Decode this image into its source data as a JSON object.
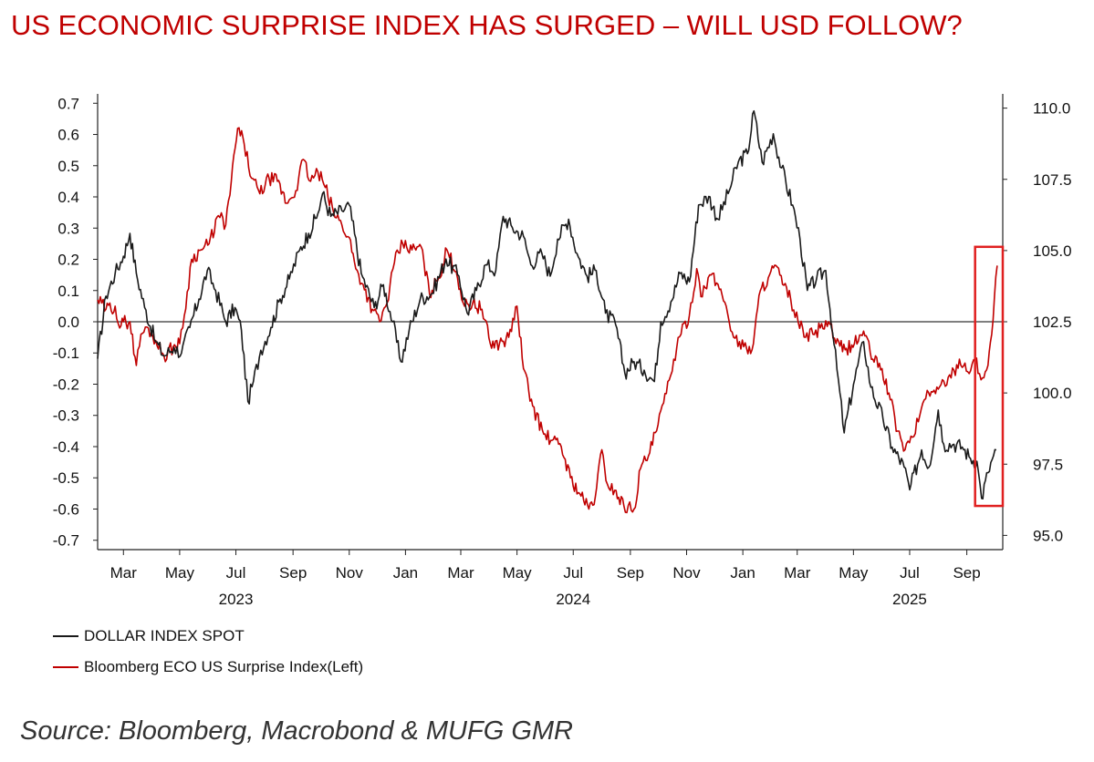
{
  "title": "US ECONOMIC SURPRISE INDEX HAS SURGED – WILL USD FOLLOW?",
  "source": "Source: Bloomberg, Macrobond & MUFG GMR",
  "colors": {
    "title": "#c00000",
    "dxy": "#1a1a1a",
    "eco": "#c00000",
    "highlight_box": "#e02020",
    "zero_line": "#333333"
  },
  "legend": [
    {
      "label": "DOLLAR INDEX SPOT",
      "color": "#1a1a1a"
    },
    {
      "label": "Bloomberg ECO US Surprise Index(Left)",
      "color": "#c00000"
    }
  ],
  "chart_data": {
    "type": "line",
    "title": "US ECONOMIC SURPRISE INDEX HAS SURGED – WILL USD FOLLOW?",
    "x_range": [
      "2023-02-01",
      "2025-10-10"
    ],
    "x_ticks": [
      {
        "date": "2023-03-01",
        "label": "Mar"
      },
      {
        "date": "2023-05-01",
        "label": "May"
      },
      {
        "date": "2023-07-01",
        "label": "Jul"
      },
      {
        "date": "2023-09-01",
        "label": "Sep"
      },
      {
        "date": "2023-11-01",
        "label": "Nov"
      },
      {
        "date": "2024-01-01",
        "label": "Jan"
      },
      {
        "date": "2024-03-01",
        "label": "Mar"
      },
      {
        "date": "2024-05-01",
        "label": "May"
      },
      {
        "date": "2024-07-01",
        "label": "Jul"
      },
      {
        "date": "2024-09-01",
        "label": "Sep"
      },
      {
        "date": "2024-11-01",
        "label": "Nov"
      },
      {
        "date": "2025-01-01",
        "label": "Jan"
      },
      {
        "date": "2025-03-01",
        "label": "Mar"
      },
      {
        "date": "2025-05-01",
        "label": "May"
      },
      {
        "date": "2025-07-01",
        "label": "Jul"
      },
      {
        "date": "2025-09-01",
        "label": "Sep"
      }
    ],
    "year_labels": [
      {
        "date": "2023-07-01",
        "label": "2023"
      },
      {
        "date": "2024-07-01",
        "label": "2024"
      },
      {
        "date": "2025-07-01",
        "label": "2025"
      }
    ],
    "y_left": {
      "range": [
        -0.73,
        0.73
      ],
      "ticks": [
        0.7,
        0.6,
        0.5,
        0.4,
        0.3,
        0.2,
        0.1,
        0.0,
        -0.1,
        -0.2,
        -0.3,
        -0.4,
        -0.5,
        -0.6,
        -0.7
      ],
      "tick_labels": [
        "0.7",
        "0.6",
        "0.5",
        "0.4",
        "0.3",
        "0.2",
        "0.1",
        "0.0",
        "-0.1",
        "-0.2",
        "-0.3",
        "-0.4",
        "-0.5",
        "-0.6",
        "-0.7"
      ]
    },
    "y_right": {
      "range": [
        94.5,
        110.5
      ],
      "ticks": [
        110.0,
        107.5,
        105.0,
        102.5,
        100.0,
        97.5,
        95.0
      ],
      "tick_labels": [
        "110.0",
        "107.5",
        "105.0",
        "102.5",
        "100.0",
        "97.5",
        "95.0"
      ]
    },
    "zero_line": 0.0,
    "highlight_box": {
      "x": [
        "2025-09-10",
        "2025-10-10"
      ],
      "y_left": [
        -0.59,
        0.24
      ]
    },
    "series": [
      {
        "name": "DOLLAR INDEX SPOT",
        "axis": "right",
        "points": [
          [
            "2023-02-01",
            101.2
          ],
          [
            "2023-02-10",
            103.4
          ],
          [
            "2023-02-20",
            104.2
          ],
          [
            "2023-03-01",
            104.8
          ],
          [
            "2023-03-08",
            105.6
          ],
          [
            "2023-03-15",
            104.2
          ],
          [
            "2023-03-24",
            103.0
          ],
          [
            "2023-04-05",
            101.8
          ],
          [
            "2023-04-14",
            101.3
          ],
          [
            "2023-04-25",
            101.6
          ],
          [
            "2023-05-03",
            101.4
          ],
          [
            "2023-05-12",
            102.3
          ],
          [
            "2023-05-22",
            103.3
          ],
          [
            "2023-05-31",
            104.3
          ],
          [
            "2023-06-09",
            103.6
          ],
          [
            "2023-06-20",
            102.5
          ],
          [
            "2023-06-30",
            103.0
          ],
          [
            "2023-07-07",
            102.2
          ],
          [
            "2023-07-14",
            99.7
          ],
          [
            "2023-07-20",
            100.4
          ],
          [
            "2023-07-28",
            101.5
          ],
          [
            "2023-08-08",
            102.3
          ],
          [
            "2023-08-18",
            103.3
          ],
          [
            "2023-08-28",
            104.0
          ],
          [
            "2023-09-08",
            105.0
          ],
          [
            "2023-09-18",
            105.6
          ],
          [
            "2023-09-28",
            106.3
          ],
          [
            "2023-10-03",
            107.0
          ],
          [
            "2023-10-12",
            106.2
          ],
          [
            "2023-10-24",
            106.4
          ],
          [
            "2023-11-01",
            106.6
          ],
          [
            "2023-11-14",
            104.2
          ],
          [
            "2023-11-28",
            103.0
          ],
          [
            "2023-12-08",
            103.8
          ],
          [
            "2023-12-18",
            102.5
          ],
          [
            "2023-12-27",
            101.1
          ],
          [
            "2024-01-05",
            102.2
          ],
          [
            "2024-01-17",
            103.3
          ],
          [
            "2024-01-30",
            103.5
          ],
          [
            "2024-02-14",
            104.7
          ],
          [
            "2024-02-28",
            104.1
          ],
          [
            "2024-03-08",
            102.8
          ],
          [
            "2024-03-18",
            103.6
          ],
          [
            "2024-03-28",
            104.5
          ],
          [
            "2024-04-08",
            104.3
          ],
          [
            "2024-04-16",
            106.2
          ],
          [
            "2024-04-26",
            105.8
          ],
          [
            "2024-05-08",
            105.5
          ],
          [
            "2024-05-16",
            104.5
          ],
          [
            "2024-05-28",
            104.9
          ],
          [
            "2024-06-06",
            104.1
          ],
          [
            "2024-06-14",
            105.4
          ],
          [
            "2024-06-26",
            106.1
          ],
          [
            "2024-07-05",
            104.9
          ],
          [
            "2024-07-16",
            104.1
          ],
          [
            "2024-07-26",
            104.3
          ],
          [
            "2024-08-05",
            102.8
          ],
          [
            "2024-08-16",
            102.4
          ],
          [
            "2024-08-26",
            100.7
          ],
          [
            "2024-09-05",
            101.1
          ],
          [
            "2024-09-16",
            100.8
          ],
          [
            "2024-09-27",
            100.4
          ],
          [
            "2024-10-04",
            102.5
          ],
          [
            "2024-10-15",
            103.2
          ],
          [
            "2024-10-25",
            104.2
          ],
          [
            "2024-11-04",
            103.9
          ],
          [
            "2024-11-14",
            106.6
          ],
          [
            "2024-11-25",
            106.9
          ],
          [
            "2024-12-05",
            106.1
          ],
          [
            "2024-12-16",
            107.0
          ],
          [
            "2024-12-27",
            108.1
          ],
          [
            "2025-01-06",
            108.4
          ],
          [
            "2025-01-13",
            109.9
          ],
          [
            "2025-01-22",
            108.1
          ],
          [
            "2025-02-03",
            109.1
          ],
          [
            "2025-02-12",
            107.9
          ],
          [
            "2025-02-24",
            106.6
          ],
          [
            "2025-03-04",
            105.4
          ],
          [
            "2025-03-12",
            103.6
          ],
          [
            "2025-03-22",
            104.0
          ],
          [
            "2025-04-01",
            104.3
          ],
          [
            "2025-04-10",
            101.7
          ],
          [
            "2025-04-21",
            98.6
          ],
          [
            "2025-05-01",
            100.3
          ],
          [
            "2025-05-12",
            101.8
          ],
          [
            "2025-05-20",
            100.2
          ],
          [
            "2025-06-02",
            99.1
          ],
          [
            "2025-06-12",
            98.1
          ],
          [
            "2025-06-25",
            97.4
          ],
          [
            "2025-07-01",
            96.6
          ],
          [
            "2025-07-14",
            98.0
          ],
          [
            "2025-07-22",
            97.4
          ],
          [
            "2025-08-01",
            99.4
          ],
          [
            "2025-08-07",
            98.2
          ],
          [
            "2025-08-18",
            98.2
          ],
          [
            "2025-08-27",
            98.1
          ],
          [
            "2025-09-05",
            97.7
          ],
          [
            "2025-09-12",
            97.6
          ],
          [
            "2025-09-17",
            96.3
          ],
          [
            "2025-09-24",
            97.2
          ],
          [
            "2025-09-30",
            97.8
          ],
          [
            "2025-10-03",
            98.0
          ]
        ]
      },
      {
        "name": "Bloomberg ECO US Surprise Index(Left)",
        "axis": "left",
        "points": [
          [
            "2023-02-01",
            0.07
          ],
          [
            "2023-02-10",
            0.04
          ],
          [
            "2023-02-20",
            0.05
          ],
          [
            "2023-02-25",
            -0.02
          ],
          [
            "2023-03-01",
            0.0
          ],
          [
            "2023-03-08",
            0.0
          ],
          [
            "2023-03-15",
            -0.14
          ],
          [
            "2023-03-20",
            -0.04
          ],
          [
            "2023-03-28",
            -0.02
          ],
          [
            "2023-04-05",
            -0.06
          ],
          [
            "2023-04-14",
            -0.11
          ],
          [
            "2023-04-24",
            -0.08
          ],
          [
            "2023-05-01",
            -0.07
          ],
          [
            "2023-05-06",
            0.02
          ],
          [
            "2023-05-14",
            0.2
          ],
          [
            "2023-05-24",
            0.23
          ],
          [
            "2023-06-02",
            0.25
          ],
          [
            "2023-06-12",
            0.34
          ],
          [
            "2023-06-20",
            0.31
          ],
          [
            "2023-06-26",
            0.45
          ],
          [
            "2023-07-03",
            0.62
          ],
          [
            "2023-07-10",
            0.57
          ],
          [
            "2023-07-18",
            0.46
          ],
          [
            "2023-07-27",
            0.41
          ],
          [
            "2023-08-06",
            0.46
          ],
          [
            "2023-08-15",
            0.45
          ],
          [
            "2023-08-25",
            0.38
          ],
          [
            "2023-09-04",
            0.42
          ],
          [
            "2023-09-12",
            0.52
          ],
          [
            "2023-09-20",
            0.45
          ],
          [
            "2023-09-28",
            0.48
          ],
          [
            "2023-10-06",
            0.43
          ],
          [
            "2023-10-15",
            0.35
          ],
          [
            "2023-10-24",
            0.31
          ],
          [
            "2023-11-01",
            0.27
          ],
          [
            "2023-11-08",
            0.17
          ],
          [
            "2023-11-16",
            0.12
          ],
          [
            "2023-11-26",
            0.04
          ],
          [
            "2023-12-04",
            0.0
          ],
          [
            "2023-12-12",
            0.06
          ],
          [
            "2023-12-20",
            0.19
          ],
          [
            "2023-12-29",
            0.25
          ],
          [
            "2024-01-08",
            0.23
          ],
          [
            "2024-01-18",
            0.24
          ],
          [
            "2024-01-27",
            0.09
          ],
          [
            "2024-02-06",
            0.14
          ],
          [
            "2024-02-15",
            0.23
          ],
          [
            "2024-02-25",
            0.16
          ],
          [
            "2024-03-05",
            0.05
          ],
          [
            "2024-03-14",
            0.06
          ],
          [
            "2024-03-24",
            0.04
          ],
          [
            "2024-04-02",
            -0.07
          ],
          [
            "2024-04-12",
            -0.07
          ],
          [
            "2024-04-22",
            -0.05
          ],
          [
            "2024-05-01",
            0.05
          ],
          [
            "2024-05-08",
            -0.15
          ],
          [
            "2024-05-18",
            -0.27
          ],
          [
            "2024-05-30",
            -0.36
          ],
          [
            "2024-06-08",
            -0.38
          ],
          [
            "2024-06-18",
            -0.4
          ],
          [
            "2024-06-28",
            -0.5
          ],
          [
            "2024-07-08",
            -0.55
          ],
          [
            "2024-07-18",
            -0.6
          ],
          [
            "2024-07-25",
            -0.56
          ],
          [
            "2024-08-01",
            -0.41
          ],
          [
            "2024-08-07",
            -0.52
          ],
          [
            "2024-08-15",
            -0.54
          ],
          [
            "2024-08-25",
            -0.59
          ],
          [
            "2024-09-05",
            -0.6
          ],
          [
            "2024-09-12",
            -0.47
          ],
          [
            "2024-09-22",
            -0.42
          ],
          [
            "2024-10-01",
            -0.33
          ],
          [
            "2024-10-10",
            -0.23
          ],
          [
            "2024-10-18",
            -0.12
          ],
          [
            "2024-10-26",
            -0.04
          ],
          [
            "2024-11-04",
            0.02
          ],
          [
            "2024-11-12",
            0.17
          ],
          [
            "2024-11-18",
            0.08
          ],
          [
            "2024-11-26",
            0.15
          ],
          [
            "2024-12-05",
            0.12
          ],
          [
            "2024-12-14",
            0.05
          ],
          [
            "2024-12-22",
            -0.05
          ],
          [
            "2025-01-02",
            -0.08
          ],
          [
            "2025-01-11",
            -0.09
          ],
          [
            "2025-01-20",
            0.1
          ],
          [
            "2025-01-30",
            0.15
          ],
          [
            "2025-02-06",
            0.18
          ],
          [
            "2025-02-13",
            0.12
          ],
          [
            "2025-02-22",
            0.07
          ],
          [
            "2025-03-02",
            0.0
          ],
          [
            "2025-03-10",
            -0.05
          ],
          [
            "2025-03-18",
            -0.04
          ],
          [
            "2025-03-26",
            -0.02
          ],
          [
            "2025-04-04",
            0.0
          ],
          [
            "2025-04-12",
            -0.07
          ],
          [
            "2025-04-22",
            -0.09
          ],
          [
            "2025-05-02",
            -0.07
          ],
          [
            "2025-05-12",
            -0.03
          ],
          [
            "2025-05-22",
            -0.12
          ],
          [
            "2025-06-01",
            -0.15
          ],
          [
            "2025-06-10",
            -0.25
          ],
          [
            "2025-06-18",
            -0.35
          ],
          [
            "2025-06-26",
            -0.41
          ],
          [
            "2025-07-04",
            -0.37
          ],
          [
            "2025-07-12",
            -0.3
          ],
          [
            "2025-07-20",
            -0.22
          ],
          [
            "2025-07-29",
            -0.23
          ],
          [
            "2025-08-07",
            -0.19
          ],
          [
            "2025-08-15",
            -0.18
          ],
          [
            "2025-08-24",
            -0.12
          ],
          [
            "2025-09-02",
            -0.16
          ],
          [
            "2025-09-10",
            -0.12
          ],
          [
            "2025-09-18",
            -0.18
          ],
          [
            "2025-09-24",
            -0.14
          ],
          [
            "2025-09-28",
            -0.04
          ],
          [
            "2025-10-01",
            0.08
          ],
          [
            "2025-10-04",
            0.18
          ]
        ]
      }
    ]
  }
}
